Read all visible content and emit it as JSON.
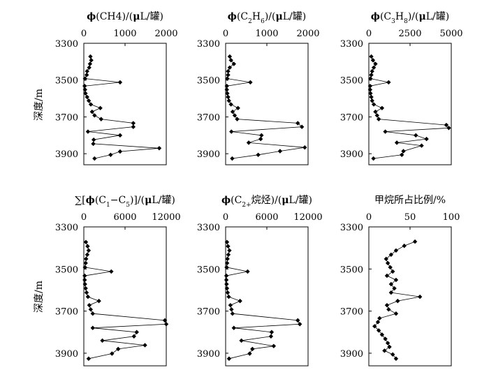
{
  "y_axis_label": "深度/m",
  "chart_data": [
    {
      "type": "line",
      "title": "φ(CH4)/(μL/罐)",
      "title_parts": [
        "ϕ",
        "(CH",
        "4",
        ")/(",
        "μ",
        "L/罐)"
      ],
      "ylabel": "深度/m",
      "xlim": [
        0,
        2000
      ],
      "ylim": [
        3300,
        3960
      ],
      "y_inverted": true,
      "x_ticks": [
        "0",
        "1000",
        "2000"
      ],
      "y_ticks": [
        "3300",
        "3500",
        "3700",
        "3900"
      ],
      "points": [
        {
          "x": 160,
          "y": 3372
        },
        {
          "x": 180,
          "y": 3392
        },
        {
          "x": 150,
          "y": 3412
        },
        {
          "x": 130,
          "y": 3432
        },
        {
          "x": 80,
          "y": 3452
        },
        {
          "x": 70,
          "y": 3472
        },
        {
          "x": 30,
          "y": 3492
        },
        {
          "x": 880,
          "y": 3512
        },
        {
          "x": 20,
          "y": 3532
        },
        {
          "x": 30,
          "y": 3552
        },
        {
          "x": 40,
          "y": 3572
        },
        {
          "x": 80,
          "y": 3592
        },
        {
          "x": 120,
          "y": 3612
        },
        {
          "x": 170,
          "y": 3632
        },
        {
          "x": 400,
          "y": 3652
        },
        {
          "x": 200,
          "y": 3672
        },
        {
          "x": 260,
          "y": 3692
        },
        {
          "x": 420,
          "y": 3712
        },
        {
          "x": 1200,
          "y": 3734
        },
        {
          "x": 1200,
          "y": 3754
        },
        {
          "x": 100,
          "y": 3780
        },
        {
          "x": 880,
          "y": 3800
        },
        {
          "x": 240,
          "y": 3824
        },
        {
          "x": 230,
          "y": 3846
        },
        {
          "x": 1830,
          "y": 3870
        },
        {
          "x": 880,
          "y": 3888
        },
        {
          "x": 650,
          "y": 3906
        },
        {
          "x": 260,
          "y": 3926
        }
      ]
    },
    {
      "type": "line",
      "title": "φ(C2H6)/(μL/罐)",
      "title_parts": [
        "ϕ",
        "(C",
        "2",
        "H",
        "6",
        ")/(",
        "μ",
        "L/罐)"
      ],
      "ylabel": "",
      "xlim": [
        0,
        2000
      ],
      "ylim": [
        3300,
        3960
      ],
      "y_inverted": true,
      "x_ticks": [
        "0",
        "1000",
        "2000"
      ],
      "y_ticks": [
        "3300",
        "3500",
        "3700",
        "3900"
      ],
      "points": [
        {
          "x": 100,
          "y": 3372
        },
        {
          "x": 130,
          "y": 3392
        },
        {
          "x": 200,
          "y": 3412
        },
        {
          "x": 100,
          "y": 3432
        },
        {
          "x": 60,
          "y": 3452
        },
        {
          "x": 60,
          "y": 3472
        },
        {
          "x": 40,
          "y": 3492
        },
        {
          "x": 600,
          "y": 3512
        },
        {
          "x": 30,
          "y": 3532
        },
        {
          "x": 30,
          "y": 3552
        },
        {
          "x": 40,
          "y": 3572
        },
        {
          "x": 60,
          "y": 3592
        },
        {
          "x": 80,
          "y": 3612
        },
        {
          "x": 130,
          "y": 3632
        },
        {
          "x": 300,
          "y": 3652
        },
        {
          "x": 170,
          "y": 3672
        },
        {
          "x": 220,
          "y": 3692
        },
        {
          "x": 280,
          "y": 3712
        },
        {
          "x": 1750,
          "y": 3734
        },
        {
          "x": 1850,
          "y": 3754
        },
        {
          "x": 140,
          "y": 3780
        },
        {
          "x": 870,
          "y": 3800
        },
        {
          "x": 850,
          "y": 3820
        },
        {
          "x": 560,
          "y": 3840
        },
        {
          "x": 1920,
          "y": 3866
        },
        {
          "x": 1320,
          "y": 3886
        },
        {
          "x": 790,
          "y": 3906
        },
        {
          "x": 160,
          "y": 3926
        }
      ]
    },
    {
      "type": "line",
      "title": "φ(C3H8)/(μL/罐)",
      "title_parts": [
        "ϕ",
        "(C",
        "3",
        "H",
        "8",
        ")/(",
        "μ",
        "L/罐)"
      ],
      "ylabel": "",
      "xlim": [
        0,
        5000
      ],
      "ylim": [
        3300,
        3960
      ],
      "y_inverted": true,
      "x_ticks": [
        "0",
        "2500",
        "5000"
      ],
      "y_ticks": [
        "3300",
        "3500",
        "3700",
        "3900"
      ],
      "points": [
        {
          "x": 150,
          "y": 3372
        },
        {
          "x": 250,
          "y": 3392
        },
        {
          "x": 400,
          "y": 3412
        },
        {
          "x": 300,
          "y": 3432
        },
        {
          "x": 200,
          "y": 3452
        },
        {
          "x": 150,
          "y": 3472
        },
        {
          "x": 100,
          "y": 3492
        },
        {
          "x": 1200,
          "y": 3512
        },
        {
          "x": 80,
          "y": 3532
        },
        {
          "x": 80,
          "y": 3552
        },
        {
          "x": 100,
          "y": 3572
        },
        {
          "x": 150,
          "y": 3592
        },
        {
          "x": 200,
          "y": 3612
        },
        {
          "x": 300,
          "y": 3632
        },
        {
          "x": 800,
          "y": 3652
        },
        {
          "x": 400,
          "y": 3672
        },
        {
          "x": 500,
          "y": 3692
        },
        {
          "x": 600,
          "y": 3712
        },
        {
          "x": 4700,
          "y": 3744
        },
        {
          "x": 4850,
          "y": 3760
        },
        {
          "x": 1000,
          "y": 3780
        },
        {
          "x": 2850,
          "y": 3800
        },
        {
          "x": 3500,
          "y": 3820
        },
        {
          "x": 1700,
          "y": 3840
        },
        {
          "x": 3200,
          "y": 3856
        },
        {
          "x": 2100,
          "y": 3886
        },
        {
          "x": 2000,
          "y": 3906
        },
        {
          "x": 280,
          "y": 3926
        }
      ]
    },
    {
      "type": "line",
      "title": "∑[φ(C1−C5)]/(μL/罐)",
      "title_parts": [
        "∑[",
        "ϕ",
        "(C",
        "1",
        "−C",
        "5",
        ")]/(",
        "μ",
        "L/罐)"
      ],
      "ylabel": "深度/m",
      "xlim": [
        0,
        12000
      ],
      "ylim": [
        3300,
        3960
      ],
      "y_inverted": true,
      "x_ticks": [
        "0",
        "6000",
        "12000"
      ],
      "y_ticks": [
        "3300",
        "3500",
        "3700",
        "3900"
      ],
      "points": [
        {
          "x": 300,
          "y": 3372
        },
        {
          "x": 550,
          "y": 3392
        },
        {
          "x": 700,
          "y": 3412
        },
        {
          "x": 500,
          "y": 3432
        },
        {
          "x": 330,
          "y": 3452
        },
        {
          "x": 270,
          "y": 3472
        },
        {
          "x": 170,
          "y": 3492
        },
        {
          "x": 4000,
          "y": 3512
        },
        {
          "x": 130,
          "y": 3532
        },
        {
          "x": 130,
          "y": 3552
        },
        {
          "x": 170,
          "y": 3572
        },
        {
          "x": 270,
          "y": 3592
        },
        {
          "x": 400,
          "y": 3612
        },
        {
          "x": 600,
          "y": 3632
        },
        {
          "x": 2200,
          "y": 3652
        },
        {
          "x": 800,
          "y": 3672
        },
        {
          "x": 1000,
          "y": 3692
        },
        {
          "x": 1300,
          "y": 3712
        },
        {
          "x": 11800,
          "y": 3744
        },
        {
          "x": 12000,
          "y": 3762
        },
        {
          "x": 1300,
          "y": 3780
        },
        {
          "x": 7700,
          "y": 3800
        },
        {
          "x": 7300,
          "y": 3820
        },
        {
          "x": 2700,
          "y": 3840
        },
        {
          "x": 8900,
          "y": 3862
        },
        {
          "x": 5000,
          "y": 3880
        },
        {
          "x": 4100,
          "y": 3902
        },
        {
          "x": 700,
          "y": 3926
        }
      ]
    },
    {
      "type": "line",
      "title": "φ(C2+烷烃)/(μL/罐)",
      "title_parts": [
        "ϕ",
        "(C",
        "2+",
        "烷烃)/(",
        "μ",
        "L/罐)"
      ],
      "ylabel": "",
      "xlim": [
        0,
        12000
      ],
      "ylim": [
        3300,
        3960
      ],
      "y_inverted": true,
      "x_ticks": [
        "0",
        "6000",
        "12000"
      ],
      "y_ticks": [
        "3300",
        "3500",
        "3700",
        "3900"
      ],
      "points": [
        {
          "x": 200,
          "y": 3372
        },
        {
          "x": 350,
          "y": 3392
        },
        {
          "x": 550,
          "y": 3412
        },
        {
          "x": 400,
          "y": 3432
        },
        {
          "x": 270,
          "y": 3452
        },
        {
          "x": 220,
          "y": 3472
        },
        {
          "x": 150,
          "y": 3492
        },
        {
          "x": 3200,
          "y": 3512
        },
        {
          "x": 110,
          "y": 3532
        },
        {
          "x": 110,
          "y": 3552
        },
        {
          "x": 140,
          "y": 3572
        },
        {
          "x": 200,
          "y": 3592
        },
        {
          "x": 300,
          "y": 3612
        },
        {
          "x": 450,
          "y": 3632
        },
        {
          "x": 2100,
          "y": 3652
        },
        {
          "x": 700,
          "y": 3672
        },
        {
          "x": 850,
          "y": 3692
        },
        {
          "x": 1000,
          "y": 3712
        },
        {
          "x": 10500,
          "y": 3744
        },
        {
          "x": 10800,
          "y": 3762
        },
        {
          "x": 1200,
          "y": 3780
        },
        {
          "x": 6700,
          "y": 3800
        },
        {
          "x": 6600,
          "y": 3820
        },
        {
          "x": 2300,
          "y": 3840
        },
        {
          "x": 7000,
          "y": 3866
        },
        {
          "x": 3900,
          "y": 3880
        },
        {
          "x": 3500,
          "y": 3902
        },
        {
          "x": 500,
          "y": 3926
        }
      ]
    },
    {
      "type": "line",
      "title": "甲烷所占比例/%",
      "title_parts": [
        "甲烷所占比例/%"
      ],
      "ylabel": "",
      "xlim": [
        0,
        100
      ],
      "ylim": [
        3300,
        3960
      ],
      "y_inverted": true,
      "x_ticks": [
        "0",
        "50",
        "100"
      ],
      "y_ticks": [
        "3300",
        "3500",
        "3700",
        "3900"
      ],
      "points": [
        {
          "x": 56,
          "y": 3370
        },
        {
          "x": 43,
          "y": 3390
        },
        {
          "x": 33,
          "y": 3412
        },
        {
          "x": 27,
          "y": 3432
        },
        {
          "x": 21,
          "y": 3452
        },
        {
          "x": 23,
          "y": 3472
        },
        {
          "x": 26,
          "y": 3492
        },
        {
          "x": 29,
          "y": 3512
        },
        {
          "x": 22,
          "y": 3532
        },
        {
          "x": 33,
          "y": 3552
        },
        {
          "x": 27,
          "y": 3572
        },
        {
          "x": 31,
          "y": 3592
        },
        {
          "x": 27,
          "y": 3612
        },
        {
          "x": 62,
          "y": 3632
        },
        {
          "x": 35,
          "y": 3652
        },
        {
          "x": 22,
          "y": 3672
        },
        {
          "x": 24,
          "y": 3692
        },
        {
          "x": 33,
          "y": 3712
        },
        {
          "x": 13,
          "y": 3734
        },
        {
          "x": 11,
          "y": 3752
        },
        {
          "x": 7,
          "y": 3772
        },
        {
          "x": 12,
          "y": 3792
        },
        {
          "x": 16,
          "y": 3812
        },
        {
          "x": 20,
          "y": 3832
        },
        {
          "x": 23,
          "y": 3852
        },
        {
          "x": 25,
          "y": 3870
        },
        {
          "x": 19,
          "y": 3888
        },
        {
          "x": 29,
          "y": 3906
        },
        {
          "x": 33,
          "y": 3926
        }
      ]
    }
  ]
}
